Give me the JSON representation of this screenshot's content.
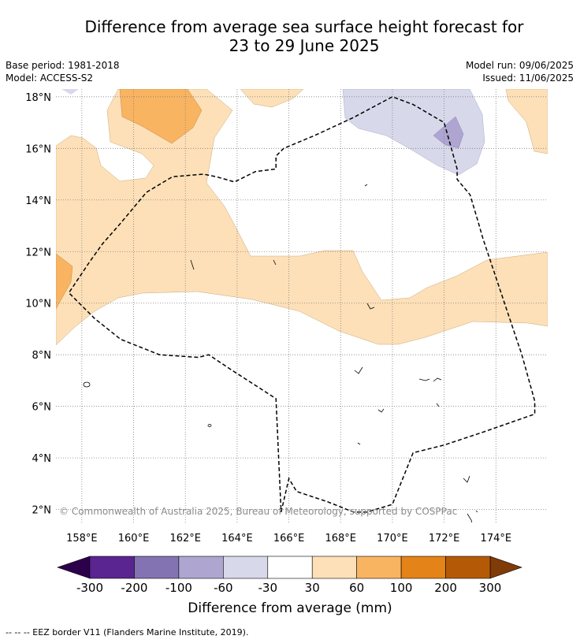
{
  "title_line1": "Difference from average sea surface height forecast for",
  "title_line2": "23 to 29 June 2025",
  "meta_left": [
    "Base period: 1981-2018",
    "Model: ACCESS-S2"
  ],
  "meta_right": [
    "Model run: 09/06/2025",
    "Issued: 11/06/2025"
  ],
  "copyright": "© Commonwealth of Australia 2025, Bureau of Meteorology, supported by COSPPac",
  "map": {
    "lon_range": [
      157,
      176
    ],
    "lat_range": [
      1.5,
      18.3
    ],
    "lat_ticks": [
      "2°N",
      "4°N",
      "6°N",
      "8°N",
      "10°N",
      "12°N",
      "14°N",
      "16°N",
      "18°N"
    ],
    "lon_ticks": [
      "158°E",
      "160°E",
      "162°E",
      "164°E",
      "166°E",
      "168°E",
      "170°E",
      "172°E",
      "174°E"
    ],
    "eez_border": [
      [
        165.7,
        1.9
      ],
      [
        166,
        3.2
      ],
      [
        166.3,
        2.7
      ],
      [
        167.5,
        2.3
      ],
      [
        168.5,
        1.9
      ],
      [
        169,
        1.9
      ],
      [
        170,
        2.2
      ],
      [
        170.8,
        4.2
      ],
      [
        172,
        4.5
      ],
      [
        173.5,
        5.0
      ],
      [
        175.5,
        5.7
      ],
      [
        175.5,
        6.2
      ],
      [
        175,
        8
      ],
      [
        174.5,
        9.5
      ],
      [
        174,
        11
      ],
      [
        173.5,
        12.5
      ],
      [
        173.3,
        13.2
      ],
      [
        173,
        14.2
      ],
      [
        172.5,
        14.8
      ],
      [
        172.5,
        15.2
      ],
      [
        172,
        17
      ],
      [
        170.8,
        17.7
      ],
      [
        170,
        18
      ],
      [
        168.5,
        17.2
      ],
      [
        167,
        16.5
      ],
      [
        165.8,
        16.0
      ],
      [
        165.5,
        15.7
      ],
      [
        165.5,
        15.2
      ],
      [
        164.7,
        15.1
      ],
      [
        163.9,
        14.7
      ],
      [
        163.2,
        14.9
      ],
      [
        162.7,
        15.0
      ],
      [
        161.5,
        14.9
      ],
      [
        160.5,
        14.3
      ],
      [
        159.5,
        13.1
      ],
      [
        158.8,
        12.3
      ],
      [
        158.3,
        11.6
      ],
      [
        157.5,
        10.4
      ],
      [
        158.5,
        9.4
      ],
      [
        159.5,
        8.6
      ],
      [
        161,
        8.0
      ],
      [
        162.5,
        7.9
      ],
      [
        162.9,
        8.0
      ],
      [
        163.8,
        7.4
      ],
      [
        165.5,
        6.3
      ],
      [
        165.7,
        1.9
      ]
    ]
  },
  "colorbar": {
    "ticks": [
      "-300",
      "-200",
      "-100",
      "-60",
      "-30",
      "30",
      "60",
      "100",
      "200",
      "300"
    ],
    "colors": [
      "#5a2590",
      "#8373b2",
      "#aea6d1",
      "#d8d8eb",
      "#ffffff",
      "#fde0b8",
      "#f9b461",
      "#e48317",
      "#b45a07"
    ],
    "under_color": "#2d004b",
    "over_color": "#7f3b08",
    "label": "Difference from average (mm)"
  },
  "footer": "-- -- -- EEZ border V11 (Flanders Marine Institute, 2019)."
}
